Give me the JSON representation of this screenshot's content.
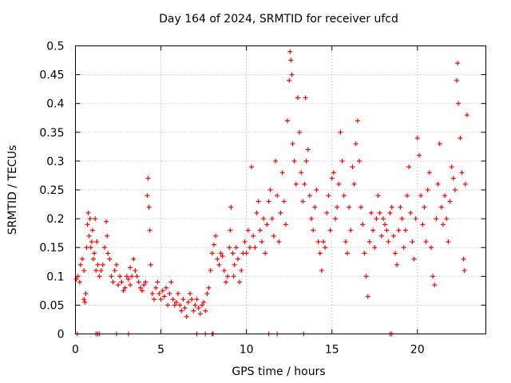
{
  "chart_data": {
    "type": "scatter",
    "title": "Day 164 of 2024, SRMTID for receiver ufcd",
    "xlabel": "GPS time / hours",
    "ylabel": "SRMTID / TECUs",
    "xlim": [
      0,
      24
    ],
    "ylim": [
      0,
      0.5
    ],
    "grid": true,
    "marker": "+",
    "color": "#ff0000",
    "x_ticks": [
      0,
      5,
      10,
      15,
      20
    ],
    "x_tick_labels": [
      "0",
      "5",
      "10",
      "15",
      "20"
    ],
    "y_ticks": [
      0,
      0.05,
      0.1,
      0.15,
      0.2,
      0.25,
      0.3,
      0.35,
      0.4,
      0.45,
      0.5
    ],
    "y_tick_labels": [
      "0",
      "0.05",
      "0.1",
      "0.15",
      "0.2",
      "0.25",
      "0.3",
      "0.35",
      "0.4",
      "0.45",
      "0.5"
    ],
    "series": [
      {
        "name": "SRMTID",
        "points": [
          [
            0.05,
            0.095
          ],
          [
            0.15,
            0.1
          ],
          [
            0.25,
            0.09
          ],
          [
            0.3,
            0.12
          ],
          [
            0.4,
            0.13
          ],
          [
            0.5,
            0.11
          ],
          [
            0.5,
            0.06
          ],
          [
            0.55,
            0.055
          ],
          [
            0.6,
            0.07
          ],
          [
            0.65,
            0.15
          ],
          [
            0.7,
            0.19
          ],
          [
            0.75,
            0.21
          ],
          [
            0.8,
            0.17
          ],
          [
            0.85,
            0.2
          ],
          [
            0.9,
            0.15
          ],
          [
            0.95,
            0.16
          ],
          [
            1.0,
            0.18
          ],
          [
            1.05,
            0.13
          ],
          [
            1.1,
            0.14
          ],
          [
            1.15,
            0.2
          ],
          [
            1.2,
            0.11
          ],
          [
            1.3,
            0.12
          ],
          [
            1.4,
            0.1
          ],
          [
            1.5,
            0.11
          ],
          [
            1.6,
            0.12
          ],
          [
            1.7,
            0.15
          ],
          [
            1.8,
            0.195
          ],
          [
            1.85,
            0.17
          ],
          [
            1.9,
            0.14
          ],
          [
            2.0,
            0.13
          ],
          [
            2.1,
            0.1
          ],
          [
            2.2,
            0.09
          ],
          [
            2.3,
            0.11
          ],
          [
            2.4,
            0.12
          ],
          [
            2.5,
            0.085
          ],
          [
            2.6,
            0.1
          ],
          [
            2.7,
            0.09
          ],
          [
            2.8,
            0.075
          ],
          [
            2.9,
            0.08
          ],
          [
            3.0,
            0.1
          ],
          [
            3.1,
            0.095
          ],
          [
            3.2,
            0.085
          ],
          [
            3.3,
            0.1
          ],
          [
            3.4,
            0.13
          ],
          [
            3.5,
            0.11
          ],
          [
            3.6,
            0.1
          ],
          [
            3.7,
            0.09
          ],
          [
            3.8,
            0.08
          ],
          [
            3.9,
            0.075
          ],
          [
            4.0,
            0.085
          ],
          [
            4.1,
            0.09
          ],
          [
            4.2,
            0.24
          ],
          [
            4.25,
            0.27
          ],
          [
            4.3,
            0.22
          ],
          [
            4.35,
            0.18
          ],
          [
            4.4,
            0.12
          ],
          [
            4.5,
            0.07
          ],
          [
            4.6,
            0.06
          ],
          [
            4.7,
            0.08
          ],
          [
            4.8,
            0.09
          ],
          [
            4.9,
            0.07
          ],
          [
            5.0,
            0.06
          ],
          [
            5.1,
            0.075
          ],
          [
            5.2,
            0.065
          ],
          [
            5.3,
            0.08
          ],
          [
            5.4,
            0.05
          ],
          [
            5.5,
            0.07
          ],
          [
            5.6,
            0.09
          ],
          [
            5.7,
            0.06
          ],
          [
            5.8,
            0.05
          ],
          [
            5.9,
            0.055
          ],
          [
            6.0,
            0.07
          ],
          [
            6.1,
            0.05
          ],
          [
            6.2,
            0.04
          ],
          [
            6.3,
            0.06
          ],
          [
            6.4,
            0.045
          ],
          [
            6.5,
            0.03
          ],
          [
            6.6,
            0.055
          ],
          [
            6.7,
            0.07
          ],
          [
            6.8,
            0.06
          ],
          [
            6.9,
            0.04
          ],
          [
            7.0,
            0.05
          ],
          [
            7.1,
            0.06
          ],
          [
            7.2,
            0.045
          ],
          [
            7.3,
            0.035
          ],
          [
            7.4,
            0.05
          ],
          [
            7.5,
            0.055
          ],
          [
            7.6,
            0.04
          ],
          [
            7.7,
            0.07
          ],
          [
            7.8,
            0.08
          ],
          [
            7.9,
            0.11
          ],
          [
            8.0,
            0.14
          ],
          [
            8.1,
            0.155
          ],
          [
            8.2,
            0.17
          ],
          [
            8.3,
            0.13
          ],
          [
            8.4,
            0.12
          ],
          [
            8.5,
            0.14
          ],
          [
            8.6,
            0.135
          ],
          [
            8.7,
            0.11
          ],
          [
            8.8,
            0.09
          ],
          [
            8.9,
            0.1
          ],
          [
            9.0,
            0.15
          ],
          [
            9.1,
            0.22
          ],
          [
            9.2,
            0.14
          ],
          [
            9.3,
            0.12
          ],
          [
            9.4,
            0.15
          ],
          [
            9.5,
            0.13
          ],
          [
            9.6,
            0.09
          ],
          [
            9.7,
            0.11
          ],
          [
            9.8,
            0.14
          ],
          [
            9.9,
            0.16
          ],
          [
            10.0,
            0.14
          ],
          [
            10.1,
            0.18
          ],
          [
            10.2,
            0.15
          ],
          [
            10.3,
            0.29
          ],
          [
            10.4,
            0.17
          ],
          [
            10.5,
            0.15
          ],
          [
            10.6,
            0.21
          ],
          [
            10.7,
            0.23
          ],
          [
            10.8,
            0.18
          ],
          [
            10.9,
            0.16
          ],
          [
            11.0,
            0.2
          ],
          [
            11.1,
            0.14
          ],
          [
            11.2,
            0.19
          ],
          [
            11.3,
            0.23
          ],
          [
            11.4,
            0.25
          ],
          [
            11.5,
            0.2
          ],
          [
            11.6,
            0.17
          ],
          [
            11.7,
            0.3
          ],
          [
            11.8,
            0.24
          ],
          [
            11.9,
            0.16
          ],
          [
            12.0,
            0.21
          ],
          [
            12.1,
            0.28
          ],
          [
            12.2,
            0.23
          ],
          [
            12.3,
            0.19
          ],
          [
            12.4,
            0.37
          ],
          [
            12.5,
            0.44
          ],
          [
            12.55,
            0.49
          ],
          [
            12.6,
            0.475
          ],
          [
            12.65,
            0.45
          ],
          [
            12.7,
            0.33
          ],
          [
            12.8,
            0.3
          ],
          [
            12.9,
            0.26
          ],
          [
            13.0,
            0.41
          ],
          [
            13.1,
            0.35
          ],
          [
            13.2,
            0.28
          ],
          [
            13.3,
            0.23
          ],
          [
            13.4,
            0.26
          ],
          [
            13.5,
            0.3
          ],
          [
            13.6,
            0.32
          ],
          [
            13.7,
            0.24
          ],
          [
            13.8,
            0.2
          ],
          [
            13.9,
            0.18
          ],
          [
            14.0,
            0.22
          ],
          [
            14.1,
            0.25
          ],
          [
            14.2,
            0.16
          ],
          [
            14.3,
            0.14
          ],
          [
            14.4,
            0.11
          ],
          [
            14.5,
            0.16
          ],
          [
            14.6,
            0.15
          ],
          [
            14.7,
            0.21
          ],
          [
            14.8,
            0.24
          ],
          [
            14.9,
            0.18
          ],
          [
            15.0,
            0.27
          ],
          [
            15.1,
            0.28
          ],
          [
            15.2,
            0.2
          ],
          [
            15.3,
            0.22
          ],
          [
            15.4,
            0.26
          ],
          [
            15.5,
            0.35
          ],
          [
            15.6,
            0.3
          ],
          [
            15.7,
            0.24
          ],
          [
            15.8,
            0.16
          ],
          [
            15.9,
            0.14
          ],
          [
            16.0,
            0.22
          ],
          [
            16.1,
            0.18
          ],
          [
            16.2,
            0.29
          ],
          [
            16.3,
            0.26
          ],
          [
            16.4,
            0.33
          ],
          [
            16.5,
            0.37
          ],
          [
            16.6,
            0.3
          ],
          [
            16.7,
            0.22
          ],
          [
            16.8,
            0.19
          ],
          [
            16.9,
            0.14
          ],
          [
            17.0,
            0.1
          ],
          [
            17.1,
            0.065
          ],
          [
            17.2,
            0.16
          ],
          [
            17.3,
            0.21
          ],
          [
            17.4,
            0.18
          ],
          [
            17.5,
            0.15
          ],
          [
            17.6,
            0.2
          ],
          [
            17.7,
            0.24
          ],
          [
            17.8,
            0.21
          ],
          [
            17.9,
            0.17
          ],
          [
            18.0,
            0.2
          ],
          [
            18.1,
            0.19
          ],
          [
            18.2,
            0.18
          ],
          [
            18.3,
            0.16
          ],
          [
            18.4,
            0.21
          ],
          [
            18.5,
            0.22
          ],
          [
            18.6,
            0.17
          ],
          [
            18.7,
            0.14
          ],
          [
            18.8,
            0.12
          ],
          [
            18.9,
            0.18
          ],
          [
            19.0,
            0.22
          ],
          [
            19.1,
            0.2
          ],
          [
            19.2,
            0.15
          ],
          [
            19.3,
            0.18
          ],
          [
            19.4,
            0.24
          ],
          [
            19.5,
            0.29
          ],
          [
            19.6,
            0.21
          ],
          [
            19.7,
            0.16
          ],
          [
            19.8,
            0.13
          ],
          [
            19.9,
            0.2
          ],
          [
            20.0,
            0.34
          ],
          [
            20.1,
            0.31
          ],
          [
            20.2,
            0.24
          ],
          [
            20.3,
            0.19
          ],
          [
            20.4,
            0.22
          ],
          [
            20.5,
            0.16
          ],
          [
            20.6,
            0.25
          ],
          [
            20.7,
            0.28
          ],
          [
            20.8,
            0.15
          ],
          [
            20.9,
            0.1
          ],
          [
            21.0,
            0.085
          ],
          [
            21.1,
            0.2
          ],
          [
            21.2,
            0.26
          ],
          [
            21.3,
            0.33
          ],
          [
            21.4,
            0.22
          ],
          [
            21.5,
            0.19
          ],
          [
            21.6,
            0.24
          ],
          [
            21.7,
            0.2
          ],
          [
            21.8,
            0.16
          ],
          [
            21.9,
            0.23
          ],
          [
            22.0,
            0.29
          ],
          [
            22.1,
            0.27
          ],
          [
            22.2,
            0.25
          ],
          [
            22.3,
            0.44
          ],
          [
            22.35,
            0.47
          ],
          [
            22.4,
            0.4
          ],
          [
            22.5,
            0.34
          ],
          [
            22.6,
            0.28
          ],
          [
            22.7,
            0.13
          ],
          [
            22.75,
            0.11
          ],
          [
            22.8,
            0.26
          ],
          [
            22.9,
            0.38
          ],
          [
            3.2,
            0.115
          ],
          [
            1.25,
            0.16
          ],
          [
            9.05,
            0.18
          ],
          [
            9.25,
            0.1
          ],
          [
            13.45,
            0.41
          ]
        ]
      }
    ],
    "zero_markers_x": [
      0.1,
      1.2,
      1.3,
      1.4,
      2.4,
      3.1,
      7.1,
      7.6,
      8.0,
      8.05,
      11.3,
      11.8,
      13.35,
      18.4,
      18.5
    ]
  }
}
